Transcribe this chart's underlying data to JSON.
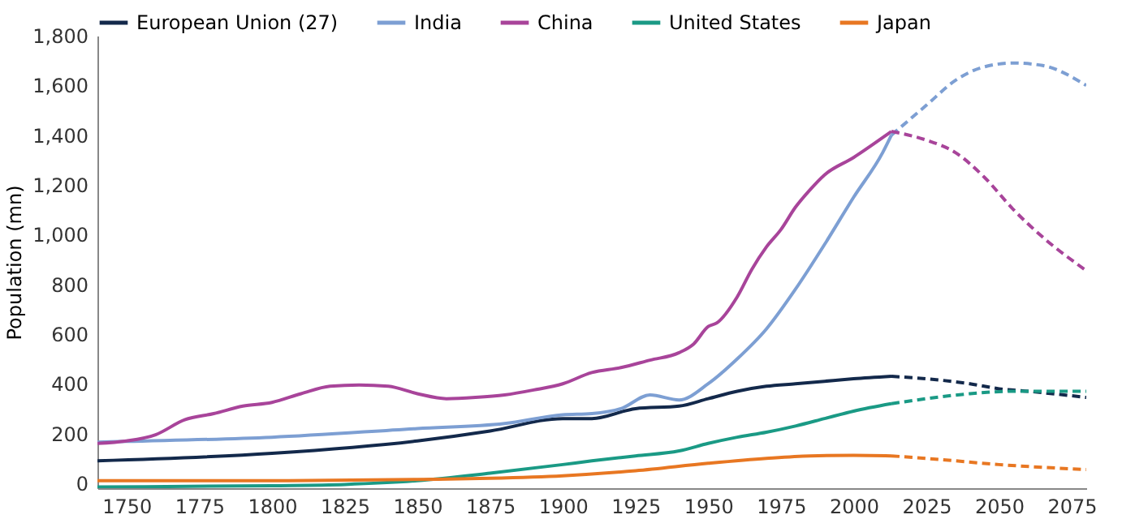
{
  "chart_data": {
    "type": "line",
    "ylabel": "Population (mn)",
    "xlim": [
      1740,
      2080
    ],
    "ylim": [
      -20,
      1800
    ],
    "xticks": [
      1750,
      1775,
      1800,
      1825,
      1850,
      1875,
      1900,
      1925,
      1950,
      1975,
      2000,
      2025,
      2050,
      2075
    ],
    "yticks": [
      0,
      200,
      400,
      600,
      800,
      {
        "value": 1000,
        "label": "1,000"
      },
      {
        "value": 1200,
        "label": "1,200"
      },
      {
        "value": 1400,
        "label": "1,400"
      },
      {
        "value": 1600,
        "label": "1,600"
      },
      {
        "value": 1800,
        "label": "1,800"
      }
    ],
    "grid": false,
    "legend": "top",
    "line_style": "solid",
    "series": [
      {
        "name": "European Union (27)",
        "color": "#13294b",
        "x": [
          1740,
          1800,
          1850,
          1875,
          1900,
          1910,
          1925,
          1940,
          1950,
          1960,
          1970,
          1980,
          1990,
          2000,
          2013
        ],
        "values": [
          90,
          120,
          170,
          210,
          260,
          260,
          300,
          310,
          340,
          370,
          390,
          400,
          410,
          420,
          430
        ]
      },
      {
        "name": "India",
        "color": "#7d9fd3",
        "x": [
          1740,
          1750,
          1800,
          1850,
          1880,
          1900,
          1910,
          1920,
          1930,
          1940,
          1950,
          1960,
          1970,
          1980,
          1990,
          2000,
          2010,
          2013
        ],
        "values": [
          165,
          168,
          185,
          220,
          240,
          275,
          280,
          300,
          355,
          335,
          400,
          500,
          620,
          780,
          960,
          1150,
          1330,
          1400
        ]
      },
      {
        "name": "China",
        "color": "#a8449a",
        "x": [
          1740,
          1750,
          1760,
          1770,
          1780,
          1790,
          1800,
          1810,
          1820,
          1830,
          1840,
          1850,
          1860,
          1870,
          1880,
          1890,
          1900,
          1910,
          1920,
          1930,
          1940,
          1945,
          1950,
          1953,
          1960,
          1965,
          1970,
          1975,
          1980,
          1985,
          1990,
          2000,
          2010,
          2013
        ],
        "values": [
          160,
          170,
          195,
          255,
          280,
          310,
          325,
          360,
          390,
          395,
          390,
          360,
          340,
          345,
          355,
          375,
          400,
          445,
          465,
          495,
          525,
          560,
          630,
          645,
          750,
          860,
          950,
          1020,
          1110,
          1180,
          1240,
          1310,
          1390,
          1415
        ]
      },
      {
        "name": "United States",
        "color": "#1a9a85",
        "x": [
          1740,
          1800,
          1825,
          1850,
          1875,
          1900,
          1910,
          1925,
          1940,
          1950,
          1960,
          1970,
          1980,
          1990,
          2000,
          2013
        ],
        "values": [
          -15,
          -10,
          -5,
          10,
          40,
          75,
          90,
          110,
          130,
          160,
          185,
          205,
          230,
          260,
          290,
          320
        ]
      },
      {
        "name": "Japan",
        "color": "#e87722",
        "x": [
          1740,
          1800,
          1850,
          1875,
          1900,
          1925,
          1950,
          1970,
          1985,
          2000,
          2013
        ],
        "values": [
          10,
          10,
          15,
          20,
          30,
          50,
          80,
          100,
          110,
          112,
          110
        ]
      },
      {
        "color": "#13294b",
        "line_style": "dashed",
        "x": [
          2013,
          2025,
          2040,
          2050,
          2060,
          2080
        ],
        "values": [
          430,
          420,
          400,
          380,
          370,
          345
        ]
      },
      {
        "color": "#7d9fd3",
        "line_style": "dashed",
        "x": [
          2013,
          2025,
          2035,
          2045,
          2055,
          2065,
          2080
        ],
        "values": [
          1400,
          1520,
          1620,
          1675,
          1690,
          1680,
          1600
        ]
      },
      {
        "color": "#a8449a",
        "line_style": "dashed",
        "x": [
          2013,
          2025,
          2035,
          2045,
          2055,
          2065,
          2080
        ],
        "values": [
          1415,
          1380,
          1330,
          1230,
          1100,
          990,
          855
        ]
      },
      {
        "color": "#1a9a85",
        "line_style": "dashed",
        "x": [
          2013,
          2025,
          2040,
          2055,
          2080
        ],
        "values": [
          320,
          340,
          360,
          370,
          370
        ]
      },
      {
        "color": "#e87722",
        "line_style": "dashed",
        "x": [
          2013,
          2030,
          2050,
          2080
        ],
        "values": [
          110,
          95,
          75,
          55
        ]
      }
    ]
  }
}
